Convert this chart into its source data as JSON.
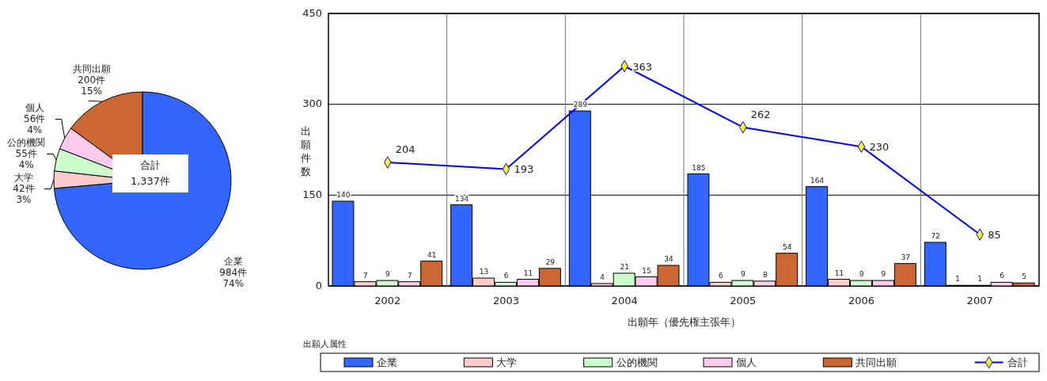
{
  "chart_data": [
    {
      "type": "pie",
      "categories": [
        "企業",
        "大学",
        "公的機関",
        "個人",
        "共同出願"
      ],
      "values": [
        984,
        42,
        55,
        56,
        200
      ],
      "colors": [
        "#3366ff",
        "#ffcccc",
        "#ccffcc",
        "#ffccee",
        "#cc6633"
      ],
      "value_labels": [
        "984件\n74%",
        "42件\n3%",
        "55件\n4%",
        "56件\n4%",
        "200件\n15%"
      ],
      "annotations": [
        "合計\n1,337件"
      ]
    },
    {
      "type": "bar",
      "categories": [
        "2002",
        "2003",
        "2004",
        "2005",
        "2006",
        "2007"
      ],
      "series": [
        {
          "name": "企業",
          "color": "#3366ff",
          "values": [
            140,
            134,
            289,
            185,
            164,
            72
          ]
        },
        {
          "name": "大学",
          "color": "#ffcccc",
          "values": [
            7,
            13,
            4,
            6,
            11,
            1
          ]
        },
        {
          "name": "公的機関",
          "color": "#ccffcc",
          "values": [
            9,
            6,
            21,
            9,
            9,
            1
          ]
        },
        {
          "name": "個人",
          "color": "#ffccee",
          "values": [
            7,
            11,
            15,
            8,
            9,
            6
          ]
        },
        {
          "name": "共同出願",
          "color": "#cc6633",
          "values": [
            41,
            29,
            34,
            54,
            37,
            5
          ]
        },
        {
          "name": "合計",
          "type": "line",
          "color": "#0000ff",
          "values": [
            204,
            193,
            363,
            262,
            230,
            85
          ],
          "marker": "diamond"
        }
      ],
      "ylim": [
        0,
        450
      ],
      "yticks": [
        0,
        150,
        300,
        450
      ],
      "grid": true,
      "data_labels": true,
      "xlabel": "出願年（優先権主張年）",
      "ylabel": "出願件数",
      "legend": "bottom",
      "legend_title": "出願人属性"
    }
  ]
}
